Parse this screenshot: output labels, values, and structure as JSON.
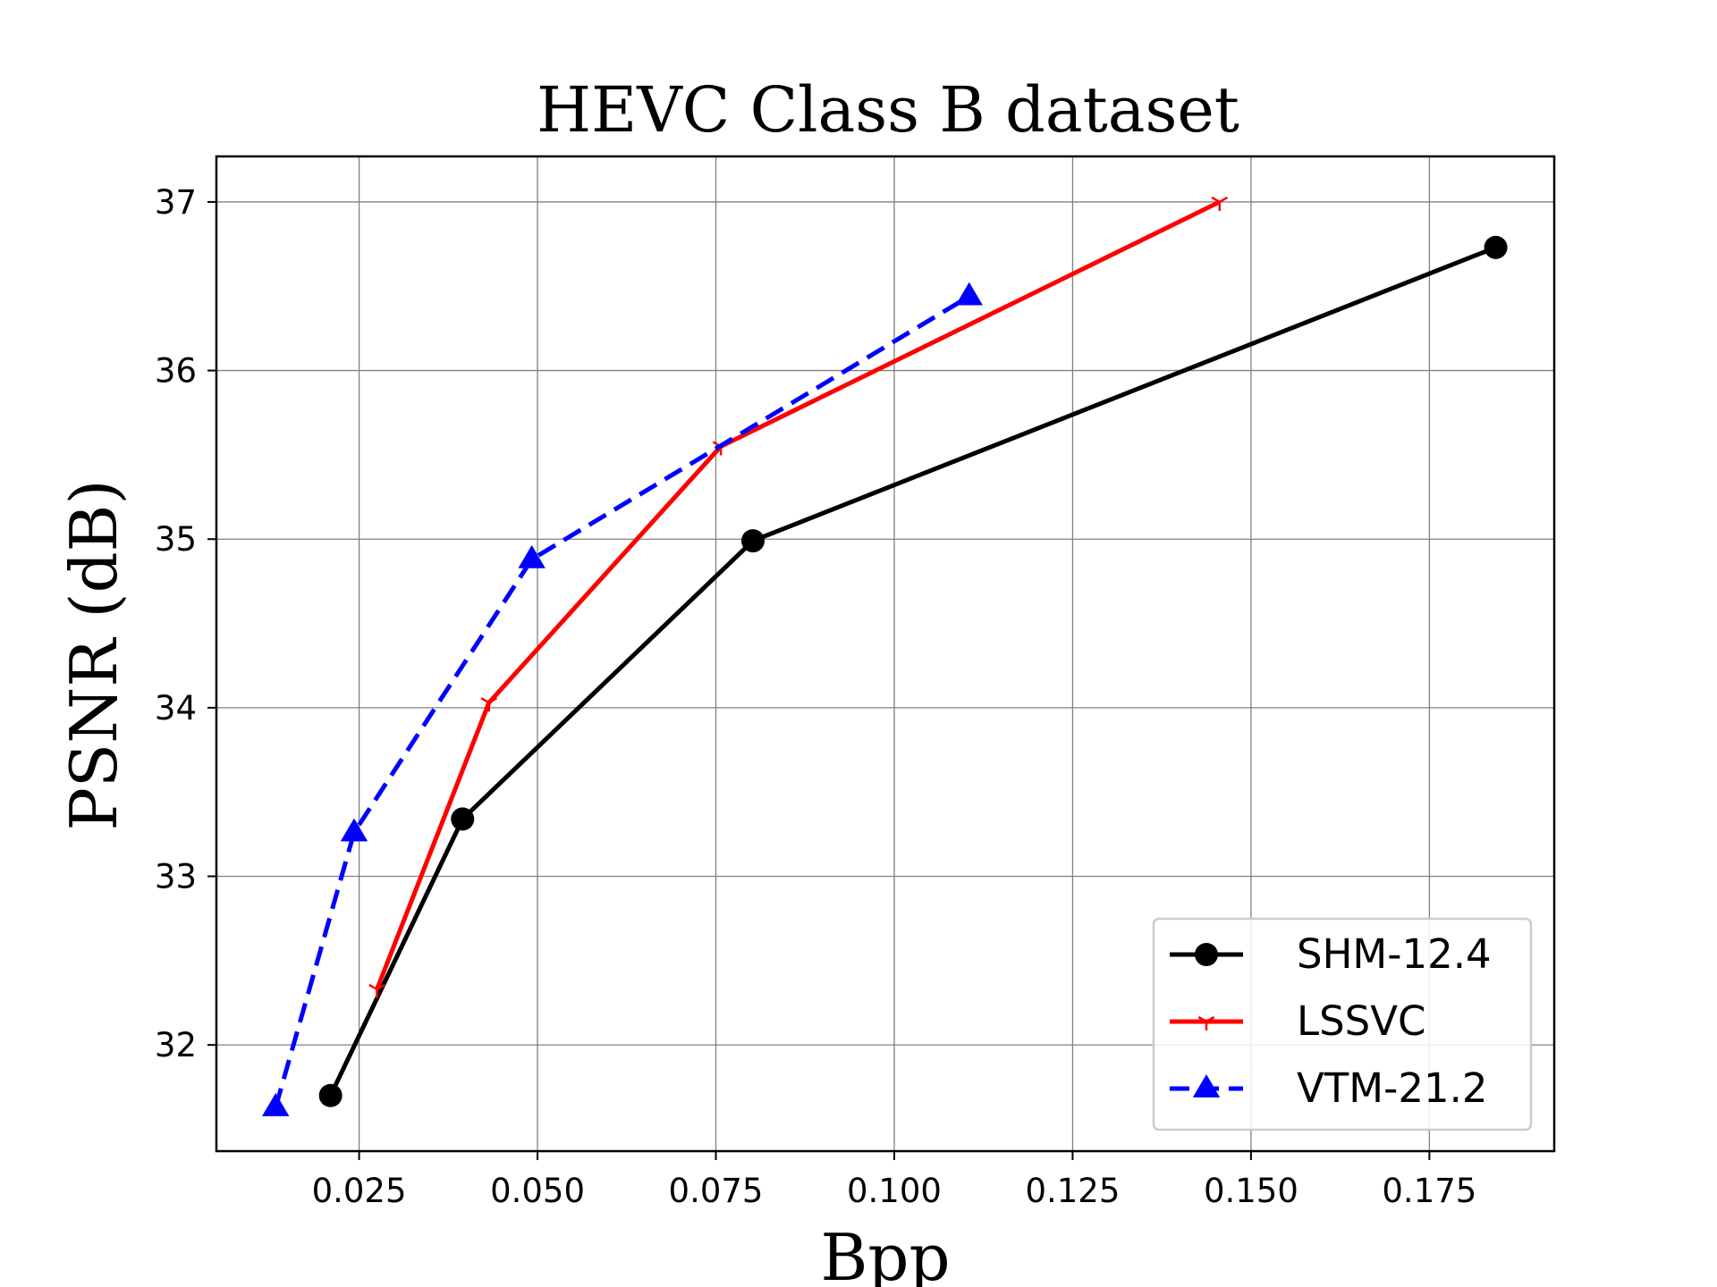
{
  "chart_data": {
    "type": "line",
    "title": "HEVC Class B dataset",
    "xlabel": "Bpp",
    "ylabel": "PSNR (dB)",
    "xlim": [
      0.005,
      0.1925
    ],
    "ylim": [
      31.37,
      37.27
    ],
    "xticks": [
      0.025,
      0.05,
      0.075,
      0.1,
      0.125,
      0.15,
      0.175
    ],
    "xtick_labels": [
      "0.025",
      "0.050",
      "0.075",
      "0.100",
      "0.125",
      "0.150",
      "0.175"
    ],
    "yticks": [
      32,
      33,
      34,
      35,
      36,
      37
    ],
    "ytick_labels": [
      "32",
      "33",
      "34",
      "35",
      "36",
      "37"
    ],
    "grid": true,
    "legend_position": "lower-right",
    "series": [
      {
        "name": "SHM-12.4",
        "color": "#000000",
        "line_style": "solid",
        "marker": "circle",
        "x": [
          0.021,
          0.0395,
          0.0802,
          0.1843
        ],
        "y": [
          31.7,
          33.34,
          34.99,
          36.73
        ]
      },
      {
        "name": "LSSVC",
        "color": "#ff0000",
        "line_style": "solid",
        "marker": "tri-down",
        "x": [
          0.0275,
          0.0432,
          0.0757,
          0.1456
        ],
        "y": [
          32.33,
          34.03,
          35.55,
          37.0
        ]
      },
      {
        "name": "VTM-21.2",
        "color": "#0000ff",
        "line_style": "dashed",
        "marker": "triangle-up",
        "x": [
          0.0133,
          0.0243,
          0.0492,
          0.1105
        ],
        "y": [
          31.63,
          33.26,
          34.88,
          36.44
        ]
      }
    ]
  }
}
